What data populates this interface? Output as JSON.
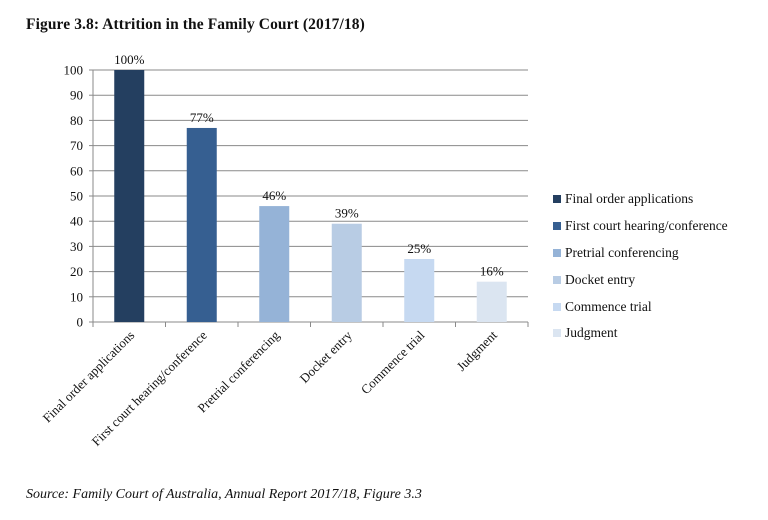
{
  "figure": {
    "title": "Figure 3.8: Attrition in the Family Court (2017/18)",
    "source": "Source: Family Court of Australia, Annual Report 2017/18, Figure 3.3"
  },
  "chart_data": {
    "type": "bar",
    "categories": [
      "Final order applications",
      "First court hearing/conference",
      "Pretrial conferencing",
      "Docket entry",
      "Commence trial",
      "Judgment"
    ],
    "values": [
      100,
      77,
      46,
      39,
      25,
      16
    ],
    "value_labels": [
      "100%",
      "77%",
      "46%",
      "39%",
      "25%",
      "16%"
    ],
    "colors": [
      "#243f60",
      "#365f91",
      "#95b3d7",
      "#b8cce4",
      "#c6d9f1",
      "#dbe5f1"
    ],
    "ylim": [
      0,
      100
    ],
    "yticks": [
      "0",
      "10",
      "20",
      "30",
      "40",
      "50",
      "60",
      "70",
      "80",
      "90",
      "100"
    ],
    "grid": true,
    "legend": {
      "position": "right",
      "entries": [
        "Final order applications",
        "First court hearing/conference",
        "Pretrial conferencing",
        "Docket entry",
        "Commence trial",
        "Judgment"
      ]
    }
  }
}
